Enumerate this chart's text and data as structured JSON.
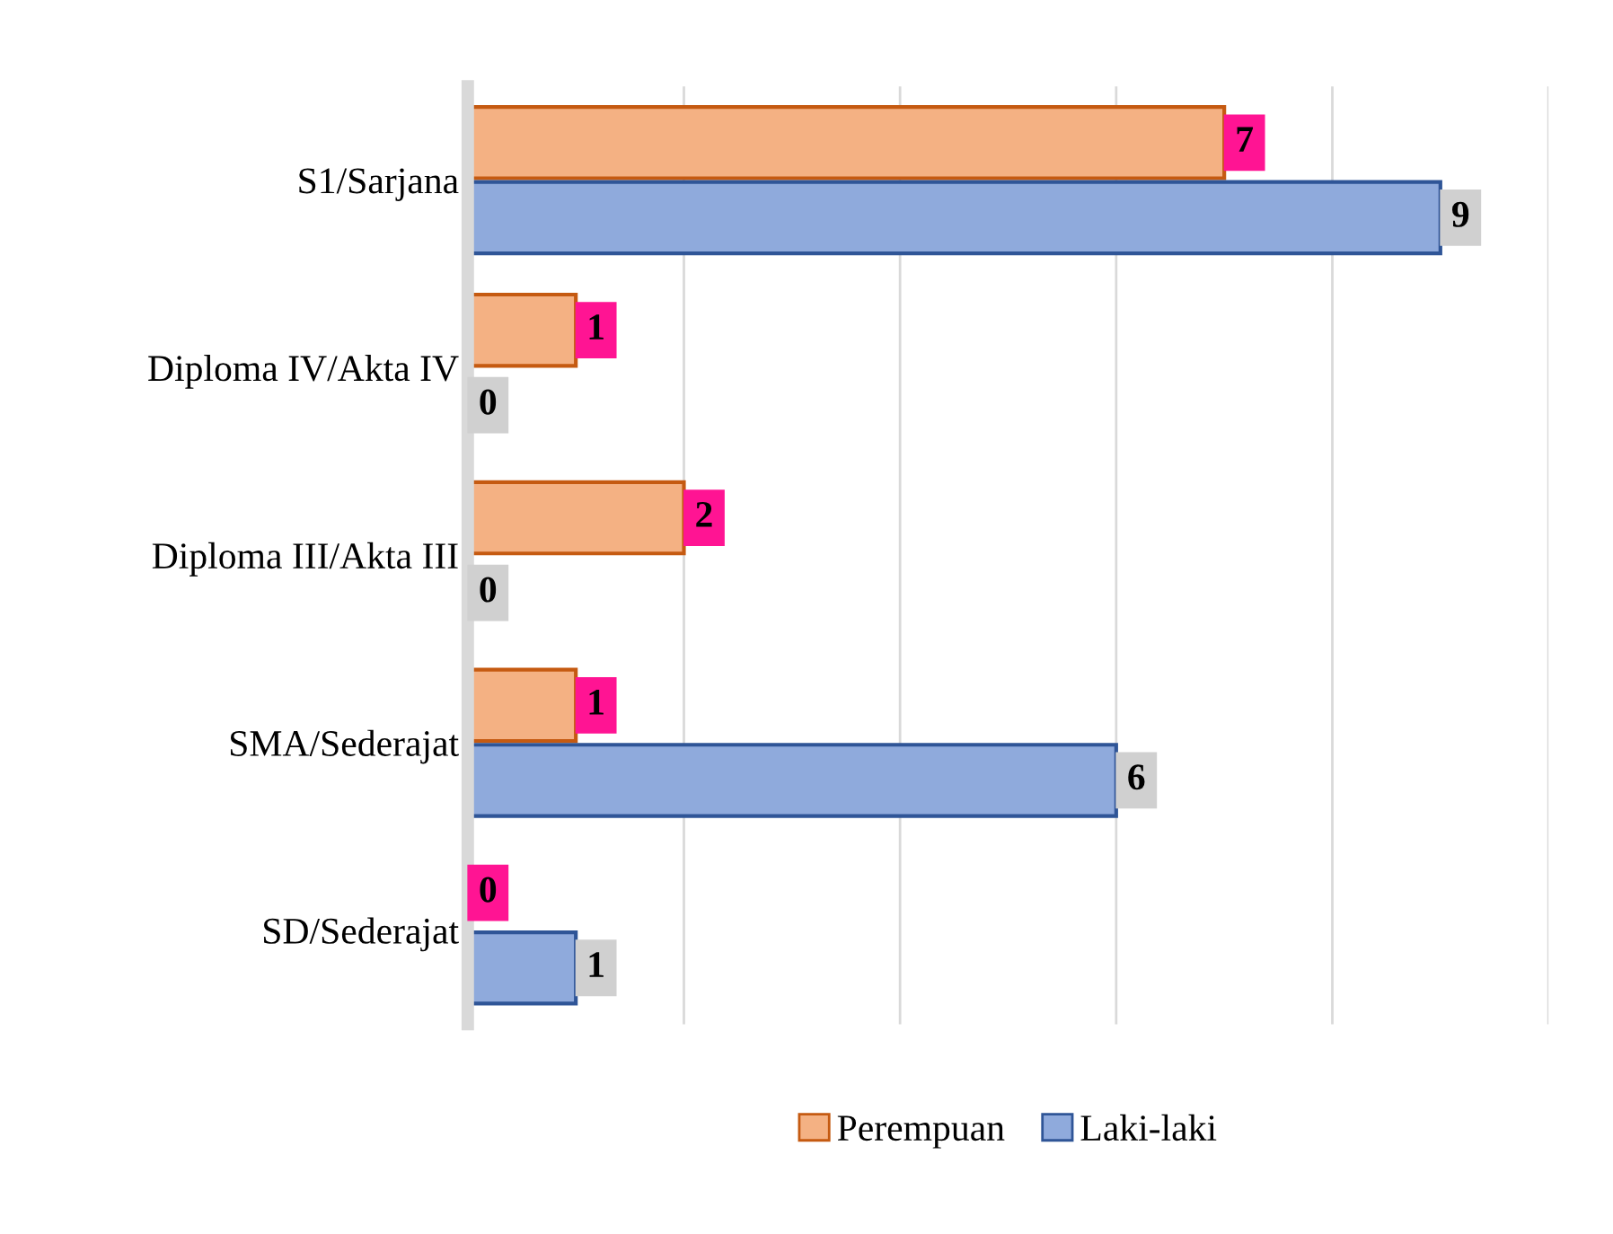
{
  "chart_data": {
    "type": "bar",
    "orientation": "horizontal",
    "categories": [
      "S1/Sarjana",
      "Diploma IV/Akta IV",
      "Diploma III/Akta III",
      "SMA/Sederajat",
      "SD/Sederajat"
    ],
    "series": [
      {
        "name": "Perempuan",
        "color": "#f4b183",
        "values": [
          7,
          1,
          2,
          1,
          0
        ]
      },
      {
        "name": "Laki-laki",
        "color": "#8faadc",
        "values": [
          9,
          0,
          0,
          6,
          1
        ]
      }
    ],
    "xlim": [
      0,
      10
    ],
    "xticks": [
      {
        "value": 0,
        "label": null
      },
      {
        "value": 2,
        "label": null
      },
      {
        "value": 4,
        "label": null
      },
      {
        "value": 6,
        "label": null
      },
      {
        "value": 8,
        "label": null
      },
      {
        "value": 10,
        "label": null
      }
    ],
    "tick_labels": "y",
    "grid": "x",
    "legend": "bottom",
    "data_labels": true
  }
}
